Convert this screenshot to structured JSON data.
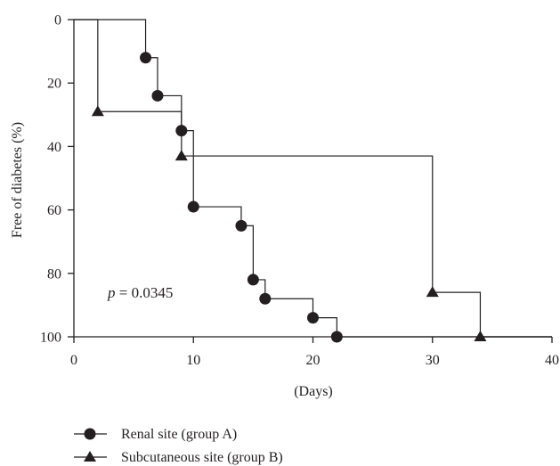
{
  "chart_data": {
    "type": "line",
    "step": true,
    "xlabel": "(Days)",
    "ylabel": "Free of diabetes (%)",
    "xlim": [
      0,
      40
    ],
    "ylim": [
      0,
      100
    ],
    "y_inverted": true,
    "xticks": [
      0,
      10,
      20,
      30,
      40
    ],
    "yticks": [
      0,
      20,
      40,
      60,
      80,
      100
    ],
    "grid": false,
    "legend_position": "bottom-left",
    "annotation": {
      "prefix": "p",
      "text": " = 0.0345"
    },
    "series": [
      {
        "name": "Renal site (group A)",
        "marker": "circle",
        "x": [
          6,
          7,
          9,
          10,
          14,
          15,
          16,
          20,
          22
        ],
        "y": [
          12,
          24,
          35,
          59,
          65,
          82,
          88,
          94,
          100
        ]
      },
      {
        "name": "Subcutaneous site (group B)",
        "marker": "triangle",
        "x": [
          2,
          9,
          30,
          34
        ],
        "y": [
          29,
          43,
          86,
          100
        ]
      }
    ]
  }
}
